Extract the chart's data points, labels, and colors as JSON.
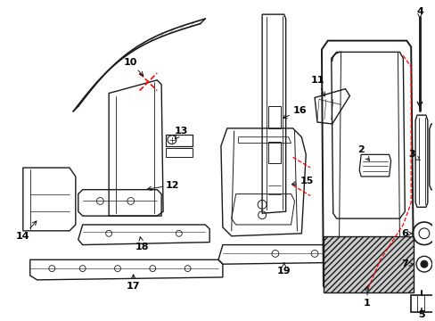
{
  "bg_color": "#ffffff",
  "lc": "#1a1a1a",
  "rc": "#ff0000",
  "figsize": [
    4.89,
    3.6
  ],
  "dpi": 100
}
